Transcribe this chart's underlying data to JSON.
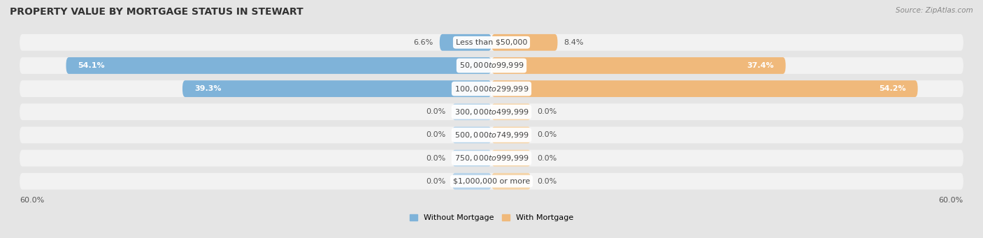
{
  "title": "PROPERTY VALUE BY MORTGAGE STATUS IN STEWART",
  "source": "Source: ZipAtlas.com",
  "categories": [
    "Less than $50,000",
    "$50,000 to $99,999",
    "$100,000 to $299,999",
    "$300,000 to $499,999",
    "$500,000 to $749,999",
    "$750,000 to $999,999",
    "$1,000,000 or more"
  ],
  "without_mortgage": [
    6.6,
    54.1,
    39.3,
    0.0,
    0.0,
    0.0,
    0.0
  ],
  "with_mortgage": [
    8.4,
    37.4,
    54.2,
    0.0,
    0.0,
    0.0,
    0.0
  ],
  "xlim": 60.0,
  "placeholder_size": 5.0,
  "bar_color_without": "#7fb3d9",
  "bar_color_with": "#f0b97b",
  "bar_color_without_light": "#b8d4ea",
  "bar_color_with_light": "#f5d4a8",
  "bg_color": "#e5e5e5",
  "bar_bg_color": "#f2f2f2",
  "legend_label_without": "Without Mortgage",
  "legend_label_with": "With Mortgage",
  "axis_label_left": "60.0%",
  "axis_label_right": "60.0%",
  "title_fontsize": 10,
  "label_fontsize": 8,
  "value_fontsize": 8,
  "source_fontsize": 7.5
}
